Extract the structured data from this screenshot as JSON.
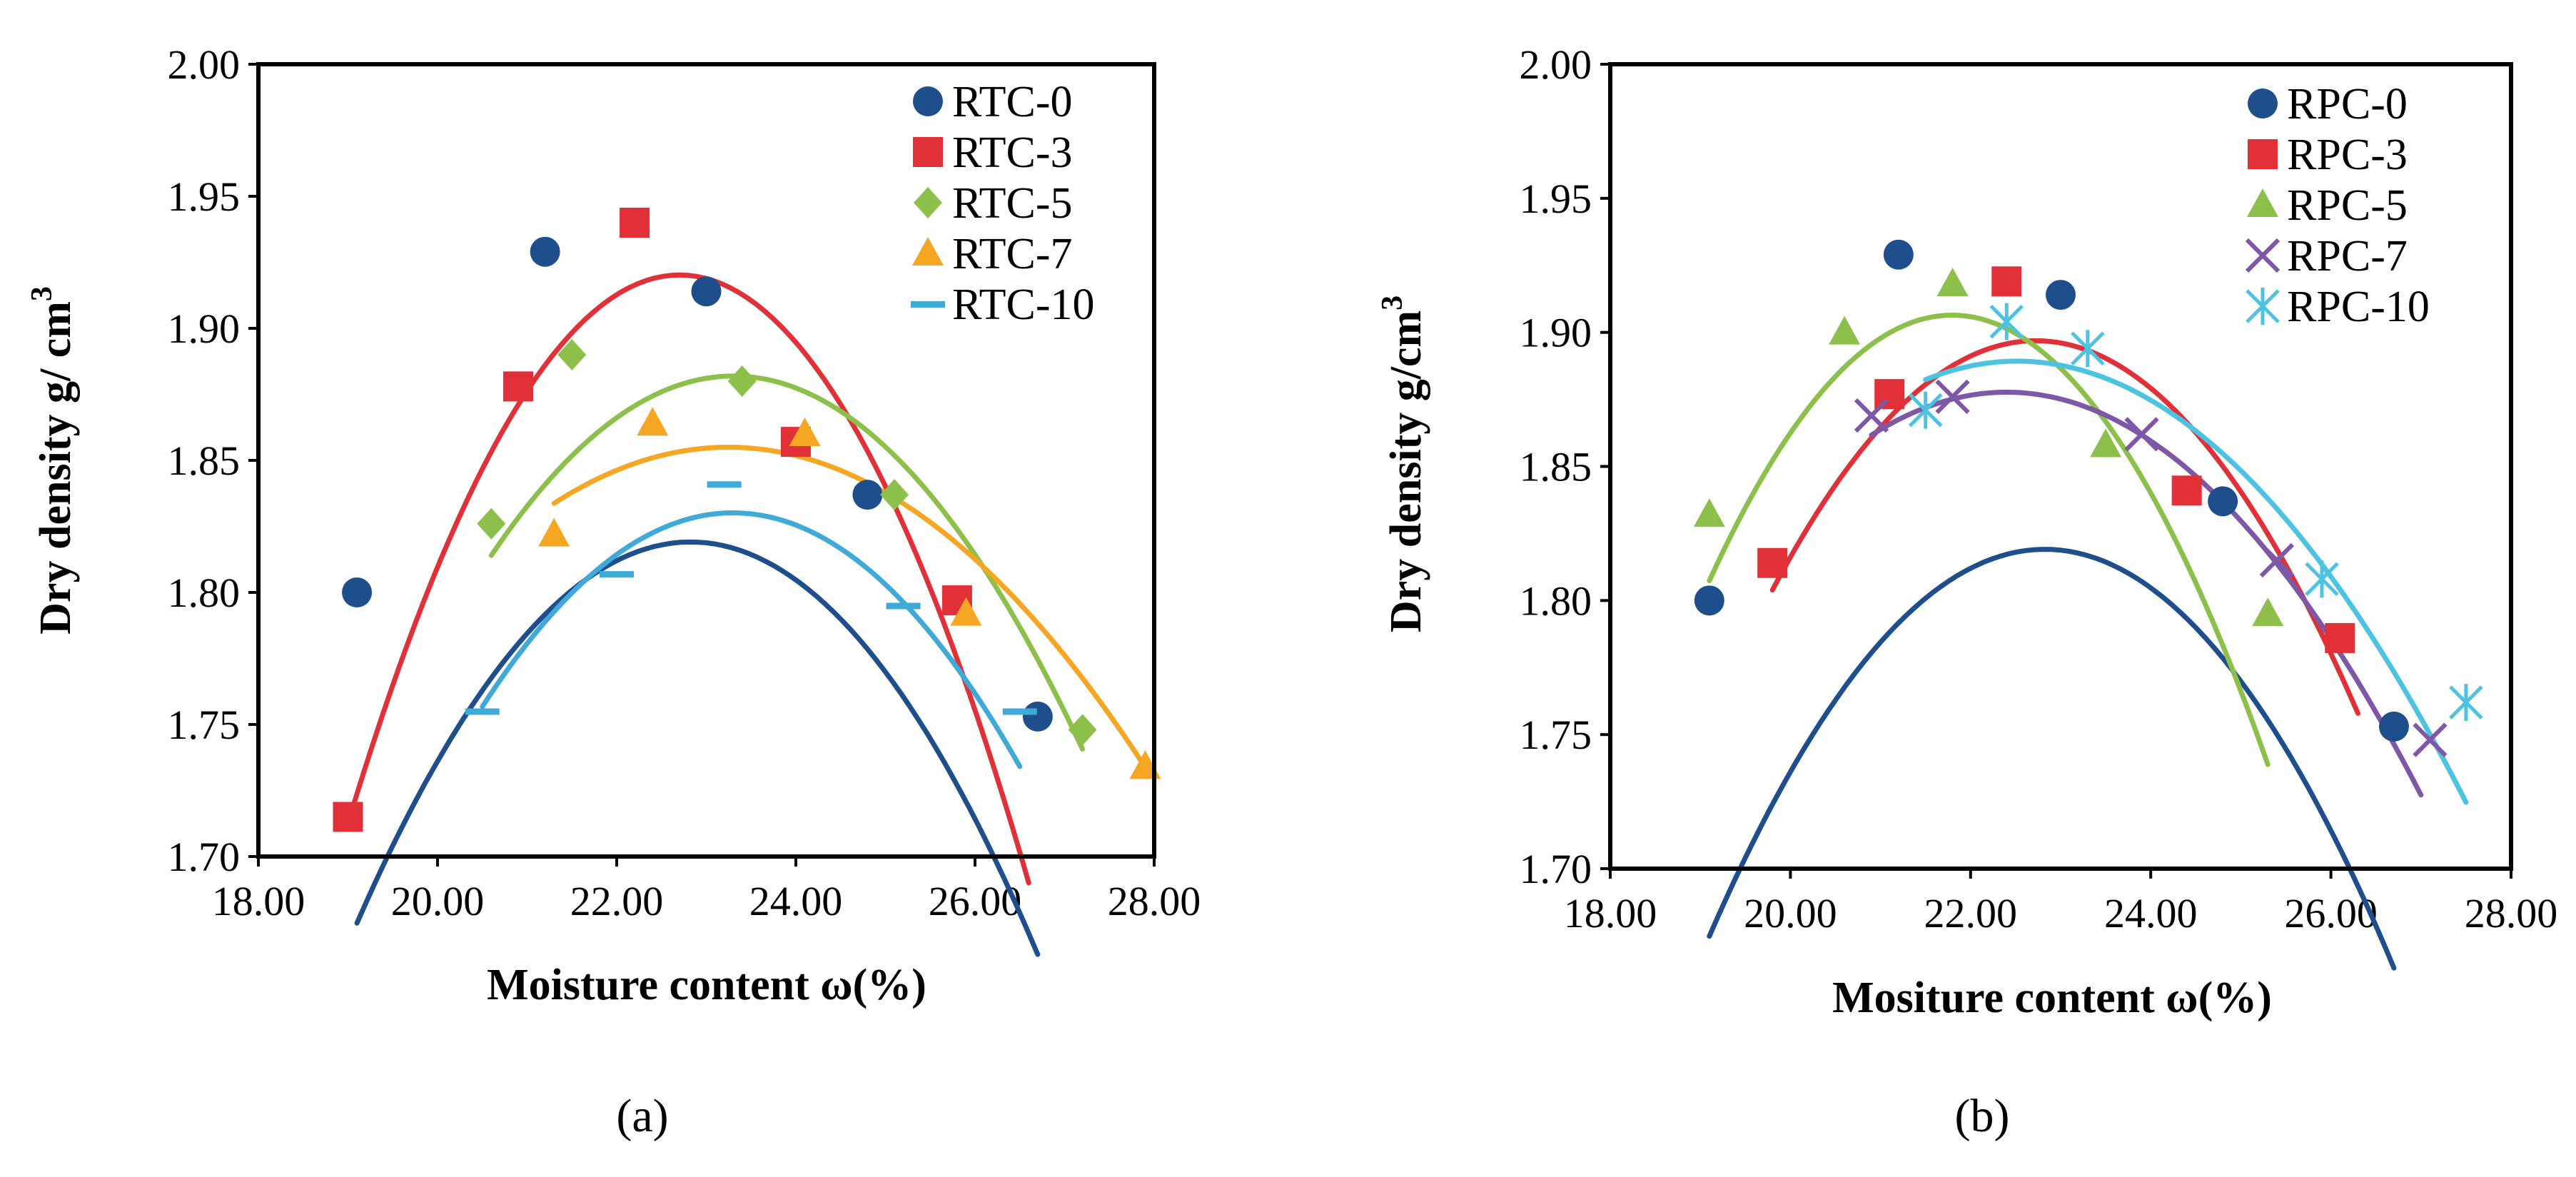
{
  "chart_data": [
    {
      "panel": "(a)",
      "type": "scatter",
      "title": "",
      "xlabel": "Moisture content ω(%)",
      "ylabel_main": "Dry density g/ cm",
      "ylabel_sup": "3",
      "xlim": [
        18,
        28
      ],
      "ylim": [
        1.7,
        2.0
      ],
      "xticks": [
        18,
        20,
        22,
        24,
        26,
        28
      ],
      "yticks": [
        1.7,
        1.75,
        1.8,
        1.85,
        1.9,
        1.95,
        2.0
      ],
      "xtick_labels": [
        "18.00",
        "20.00",
        "22.00",
        "24.00",
        "26.00",
        "28.00"
      ],
      "ytick_labels": [
        "1.70",
        "1.75",
        "1.80",
        "1.85",
        "1.90",
        "1.95",
        "2.00"
      ],
      "grid": false,
      "legend_position": "top-right",
      "series": [
        {
          "name": "RTC-0",
          "color": "#1f4e8c",
          "marker": "circle",
          "x": [
            19.1,
            21.2,
            23.0,
            24.8,
            26.7
          ],
          "y": [
            1.8,
            1.929,
            1.914,
            1.837,
            1.753
          ],
          "fit": [
            -0.0104,
            0.47476,
            -3.5991
          ],
          "fit_range": [
            19.1,
            26.7
          ]
        },
        {
          "name": "RTC-3",
          "color": "#e23038",
          "marker": "square",
          "x": [
            19.0,
            20.9,
            22.2,
            24.0,
            25.8
          ],
          "y": [
            1.715,
            1.878,
            1.94,
            1.857,
            1.797
          ],
          "fit": [
            -0.01515,
            0.68787,
            -5.8878
          ],
          "fit_range": [
            19.0,
            26.6
          ]
        },
        {
          "name": "RTC-5",
          "color": "#8cc04b",
          "marker": "diamond",
          "x": [
            20.6,
            21.5,
            23.4,
            25.1,
            27.2
          ],
          "y": [
            1.826,
            1.89,
            1.88,
            1.837,
            1.748
          ],
          "fit": [
            -0.0093,
            0.43343,
            -3.1681
          ],
          "fit_range": [
            20.6,
            27.2
          ]
        },
        {
          "name": "RTC-7",
          "color": "#f5a623",
          "marker": "triangle",
          "x": [
            21.3,
            22.4,
            24.1,
            25.9,
            27.9
          ],
          "y": [
            1.822,
            1.864,
            1.86,
            1.792,
            1.734
          ],
          "fit": [
            -0.0056,
            0.26038,
            -1.1717
          ],
          "fit_range": [
            21.3,
            27.9
          ]
        },
        {
          "name": "RTC-10",
          "color": "#3fa9d8",
          "marker": "dash",
          "x": [
            20.5,
            22.0,
            23.2,
            25.2,
            26.5
          ],
          "y": [
            1.755,
            1.807,
            1.841,
            1.795,
            1.755
          ],
          "fit": [
            -0.00937,
            0.43661,
            -3.256
          ],
          "fit_range": [
            20.5,
            26.5
          ]
        }
      ]
    },
    {
      "panel": "(b)",
      "type": "scatter",
      "title": "",
      "xlabel": "Mositure content ω(%)",
      "ylabel_main": "Dry density g/cm",
      "ylabel_sup": "3",
      "xlim": [
        18,
        28
      ],
      "ylim": [
        1.7,
        2.0
      ],
      "xticks": [
        18,
        20,
        22,
        24,
        26,
        28
      ],
      "yticks": [
        1.7,
        1.75,
        1.8,
        1.85,
        1.9,
        1.95,
        2.0
      ],
      "xtick_labels": [
        "18.00",
        "20.00",
        "22.00",
        "24.00",
        "26.00",
        "28.00"
      ],
      "ytick_labels": [
        "1.70",
        "1.75",
        "1.80",
        "1.85",
        "1.90",
        "1.95",
        "2.00"
      ],
      "grid": false,
      "legend_position": "top-right",
      "series": [
        {
          "name": "RPC-0",
          "color": "#1f4e8c",
          "marker": "circle",
          "x": [
            19.1,
            21.2,
            23.0,
            24.8,
            26.7
          ],
          "y": [
            1.8,
            1.929,
            1.914,
            1.837,
            1.753
          ],
          "fit": [
            -0.0104,
            0.47476,
            -3.5991
          ],
          "fit_range": [
            19.1,
            26.7
          ]
        },
        {
          "name": "RPC-3",
          "color": "#e23038",
          "marker": "square",
          "x": [
            19.8,
            21.1,
            22.4,
            24.4,
            26.1
          ],
          "y": [
            1.814,
            1.877,
            1.919,
            1.841,
            1.786
          ],
          "fit": [
            -0.01087,
            0.49403,
            -3.7164
          ],
          "fit_range": [
            19.8,
            26.3
          ]
        },
        {
          "name": "RPC-5",
          "color": "#8cc04b",
          "marker": "triangle",
          "x": [
            19.1,
            20.6,
            21.8,
            23.5,
            25.3
          ],
          "y": [
            1.832,
            1.9,
            1.918,
            1.858,
            1.795
          ],
          "fit": [
            -0.01364,
            0.59456,
            -4.5727
          ],
          "fit_range": [
            19.1,
            25.3
          ]
        },
        {
          "name": "RPC-7",
          "color": "#7e57a6",
          "marker": "x",
          "x": [
            20.9,
            21.8,
            23.9,
            25.4,
            27.1
          ],
          "y": [
            1.869,
            1.876,
            1.862,
            1.815,
            1.748
          ],
          "fit": [
            -0.0071,
            0.31808,
            -1.6848
          ],
          "fit_range": [
            20.9,
            27.0
          ]
        },
        {
          "name": "RPC-10",
          "color": "#4cc3e0",
          "marker": "asterisk",
          "x": [
            21.5,
            22.4,
            23.3,
            25.9,
            27.5
          ],
          "y": [
            1.871,
            1.904,
            1.894,
            1.808,
            1.762
          ],
          "fit": [
            -0.00663,
            0.2986,
            -1.4728
          ],
          "fit_range": [
            21.5,
            27.5
          ]
        }
      ]
    }
  ]
}
